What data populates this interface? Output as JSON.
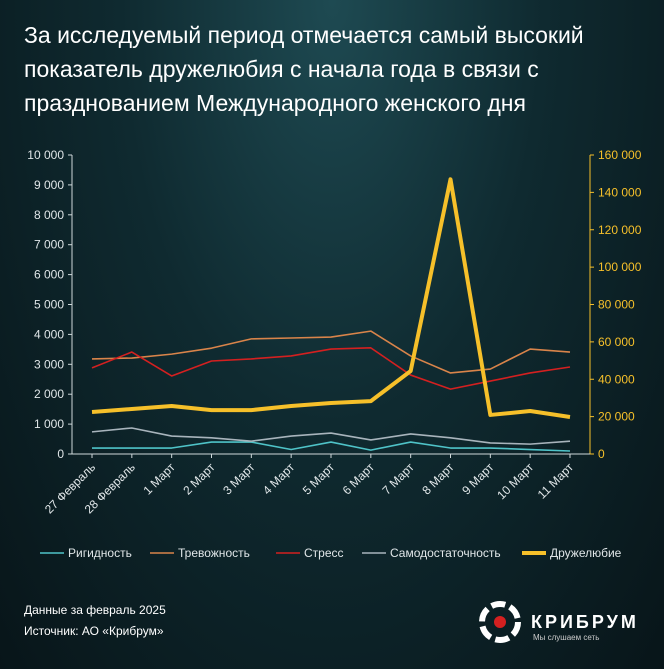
{
  "chart_data": {
    "type": "line",
    "title": "За исследуемый период отмечается самый высокий показатель дружелюбия с начала года в связи с празднованием Международного женского дня",
    "categories": [
      "27 Февраль",
      "28 Февраль",
      "1 Март",
      "2 Март",
      "3 Март",
      "4 Март",
      "5 Март",
      "6 Март",
      "7 Март",
      "8 Март",
      "9 Март",
      "10 Март",
      "11 Март"
    ],
    "series": [
      {
        "name": "Ригидность",
        "color": "#4fc3c8",
        "values": [
          200,
          200,
          200,
          400,
          400,
          150,
          400,
          130,
          400,
          200,
          200,
          150,
          100
        ]
      },
      {
        "name": "Тревожность",
        "color": "#d9844a",
        "values": [
          3180,
          3210,
          3340,
          3540,
          3850,
          3880,
          3910,
          4110,
          3280,
          2710,
          2840,
          3510,
          3410
        ]
      },
      {
        "name": "Стресс",
        "color": "#d42020",
        "values": [
          2880,
          3410,
          2610,
          3110,
          3180,
          3280,
          3510,
          3550,
          2640,
          2170,
          2440,
          2710,
          2910
        ]
      },
      {
        "name": "Самодостаточность",
        "color": "#a8b4bc",
        "values": [
          740,
          870,
          600,
          540,
          430,
          600,
          700,
          470,
          670,
          540,
          370,
          330,
          430
        ]
      },
      {
        "name": "Дружелюбие",
        "color": "#f6c02a",
        "axis": "y2",
        "values": [
          22500,
          24100,
          25700,
          23500,
          23500,
          25700,
          27300,
          28300,
          44400,
          147000,
          20900,
          23000,
          19800
        ]
      }
    ],
    "ylim": [
      0,
      10000
    ],
    "yticks": [
      0,
      {
        "value": 1000,
        "label": "1 000"
      },
      {
        "value": 2000,
        "label": "2 000"
      },
      {
        "value": 3000,
        "label": "3 000"
      },
      {
        "value": 4000,
        "label": "4 000"
      },
      {
        "value": 5000,
        "label": "5 000"
      },
      {
        "value": 6000,
        "label": "6 000"
      },
      {
        "value": 7000,
        "label": "7 000"
      },
      {
        "value": 8000,
        "label": "8 000"
      },
      {
        "value": 9000,
        "label": "9 000"
      },
      {
        "value": 10000,
        "label": "10 000"
      }
    ],
    "y2lim": [
      0,
      160000
    ],
    "y2ticks": [
      0,
      {
        "value": 20000,
        "label": "20 000"
      },
      {
        "value": 40000,
        "label": "40 000"
      },
      {
        "value": 60000,
        "label": "60 000"
      },
      {
        "value": 80000,
        "label": "80 000"
      },
      {
        "value": 100000,
        "label": "100 000"
      },
      {
        "value": 120000,
        "label": "120 000"
      },
      {
        "value": 140000,
        "label": "140 000"
      },
      {
        "value": 160000,
        "label": "160 000"
      }
    ],
    "legend": "bottom"
  },
  "footer": {
    "period": "Данные за февраль 2025",
    "source": "Источник: АО «Крибрум»"
  },
  "logo": {
    "name": "КРИБРУМ",
    "tagline": "Мы слушаем сеть"
  }
}
